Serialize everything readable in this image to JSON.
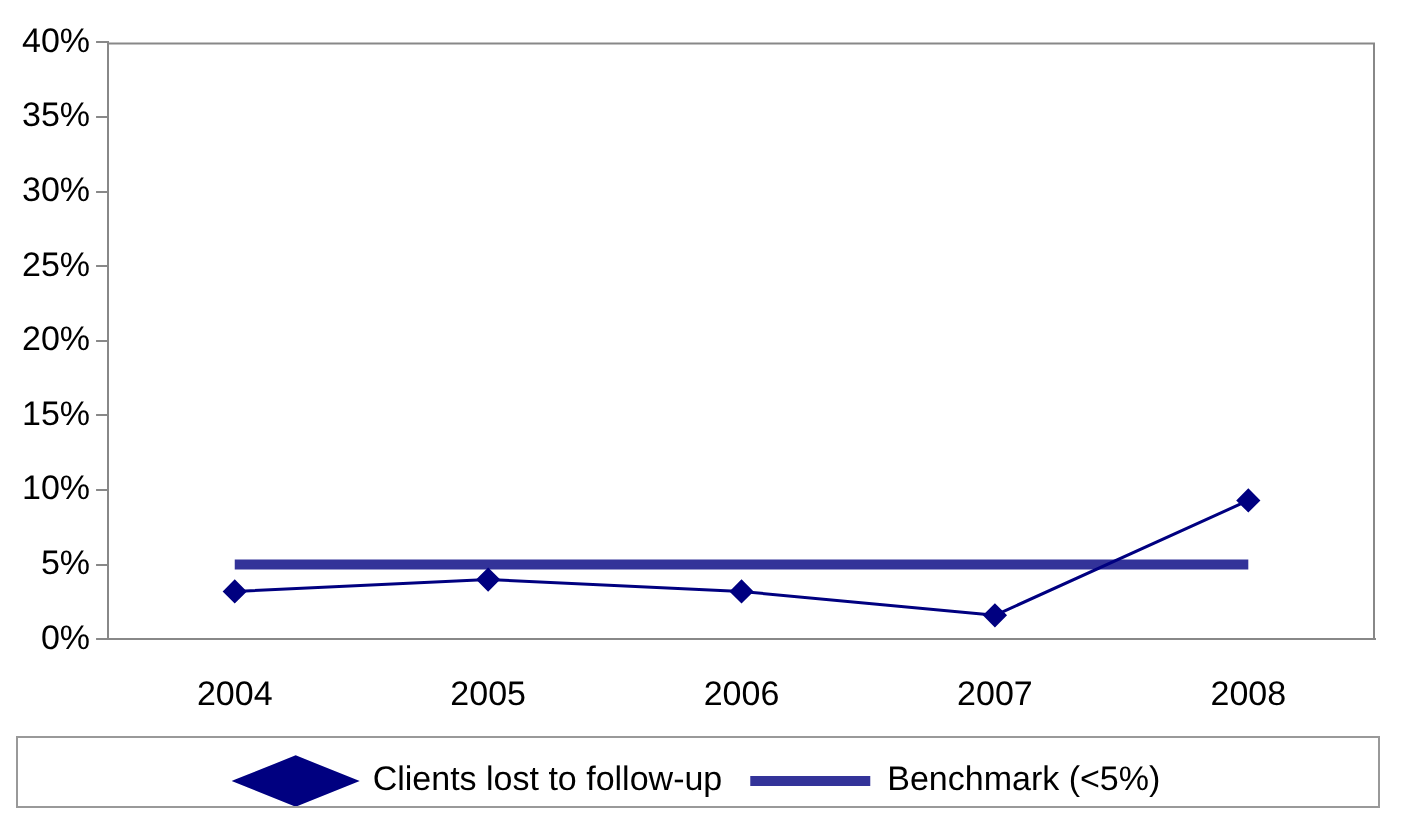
{
  "chart_data": {
    "type": "line",
    "categories": [
      "2004",
      "2005",
      "2006",
      "2007",
      "2008"
    ],
    "series": [
      {
        "name": "Clients lost to follow-up",
        "color": "#000080",
        "values": [
          3.2,
          4.0,
          3.2,
          1.6,
          9.3
        ],
        "marker": "diamond"
      },
      {
        "name": "Benchmark (<5%)",
        "color": "#333399",
        "values": [
          5,
          5,
          5,
          5,
          5
        ],
        "marker": "none"
      }
    ],
    "ylim": [
      0,
      40
    ],
    "yticks": [
      {
        "value": 0,
        "label": "0%"
      },
      {
        "value": 5,
        "label": "5%"
      },
      {
        "value": 10,
        "label": "10%"
      },
      {
        "value": 15,
        "label": "15%"
      },
      {
        "value": 20,
        "label": "20%"
      },
      {
        "value": 25,
        "label": "25%"
      },
      {
        "value": 30,
        "label": "30%"
      },
      {
        "value": 35,
        "label": "35%"
      },
      {
        "value": 40,
        "label": "40%"
      }
    ],
    "grid": false,
    "legend": "bottom",
    "line_style": "solid"
  }
}
